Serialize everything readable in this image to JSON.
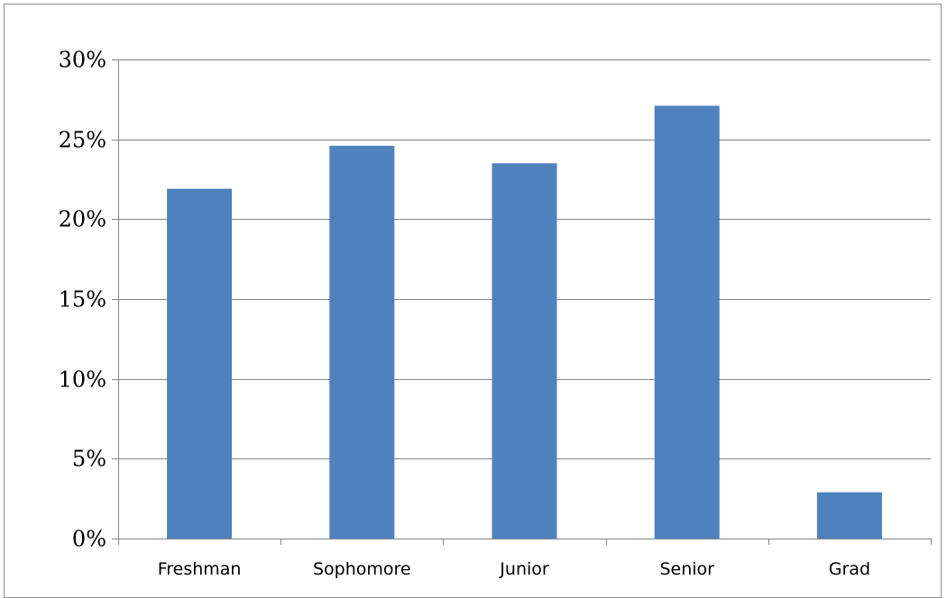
{
  "chart_data": {
    "type": "bar",
    "title": "",
    "xlabel": "",
    "ylabel": "",
    "categories": [
      "Freshman",
      "Sophomore",
      "Junior",
      "Senior",
      "Grad"
    ],
    "values": [
      21.9,
      24.6,
      23.5,
      27.1,
      2.9
    ],
    "ylim": [
      0,
      30
    ],
    "yticks": [
      0,
      5,
      10,
      15,
      20,
      25,
      30
    ],
    "ytick_labels": [
      "0%",
      "5%",
      "10%",
      "15%",
      "20%",
      "25%",
      "30%"
    ],
    "value_format": "percent",
    "grid": true,
    "legend": "none",
    "bar_color": "#4F81BD",
    "gridline_color": "#868686"
  }
}
